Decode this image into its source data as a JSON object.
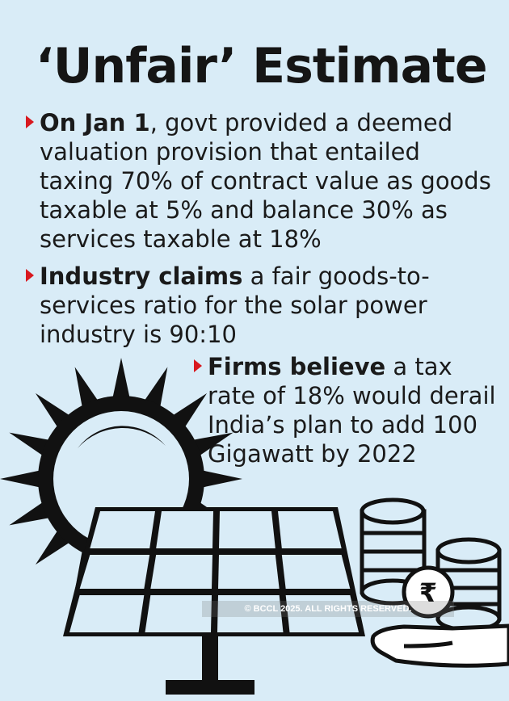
{
  "title": "‘Unfair’ Estimate",
  "bullets": [
    {
      "bold": "On Jan 1",
      "text": ", govt provided a deemed valuation provision that entailed taxing 70% of contract value as goods taxable at 5% and balance 30% as services taxable at 18%"
    },
    {
      "bold": "Industry claims",
      "text": " a fair goods-to-services ratio for the solar power industry is 90:10"
    },
    {
      "bold": "Firms believe",
      "text": " a tax rate of 18% would derail India’s plan to add 100 Gigawatt by 2022"
    }
  ],
  "rupee_symbol": "₹",
  "copyright": "© BCCL 2025. ALL RIGHTS RESERVED.",
  "colors": {
    "background": "#d9ecf7",
    "accent": "#d8191f",
    "ink": "#151515"
  }
}
